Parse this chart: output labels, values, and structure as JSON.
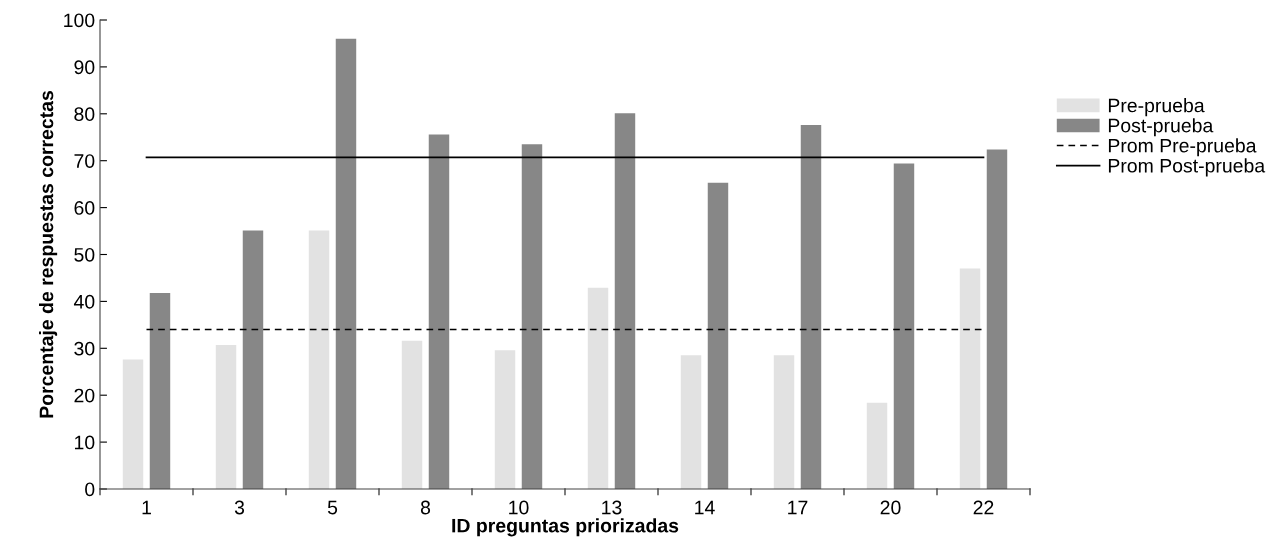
{
  "chart_data": {
    "type": "bar",
    "xlabel": "ID preguntas priorizadas",
    "ylabel": "Porcentaje de respuestas correctas",
    "categories": [
      "1",
      "3",
      "5",
      "8",
      "10",
      "13",
      "14",
      "17",
      "20",
      "22"
    ],
    "series": [
      {
        "name": "Pre-prueba",
        "color": "#e2e2e2",
        "values": [
          27.6,
          30.7,
          55.1,
          31.6,
          29.6,
          42.9,
          28.5,
          28.5,
          18.4,
          47.0
        ]
      },
      {
        "name": "Post-prueba",
        "color": "#878787",
        "values": [
          41.8,
          55.1,
          96.0,
          75.6,
          73.5,
          80.1,
          65.3,
          77.6,
          69.4,
          72.4
        ]
      },
      {
        "name": "Prom Pre-prueba",
        "type": "line",
        "line_style": "dashed",
        "color": "#000000",
        "values": [
          34.0,
          34.0,
          34.0,
          34.0,
          34.0,
          34.0,
          34.0,
          34.0,
          34.0,
          34.0
        ]
      },
      {
        "name": "Prom Post-prueba",
        "type": "line",
        "line_style": "solid",
        "color": "#000000",
        "values": [
          70.7,
          70.7,
          70.7,
          70.7,
          70.7,
          70.7,
          70.7,
          70.7,
          70.7,
          70.7
        ]
      }
    ],
    "ylim": [
      0,
      100
    ],
    "yticks": [
      0,
      10,
      20,
      30,
      40,
      50,
      60,
      70,
      80,
      90,
      100
    ],
    "grid": false,
    "legend": "right"
  }
}
